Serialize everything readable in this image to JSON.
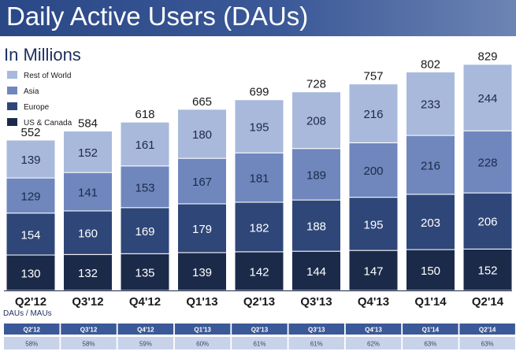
{
  "title": "Daily Active Users (DAUs)",
  "subtitle": "In Millions",
  "chart_data": {
    "type": "bar",
    "stacked": true,
    "title": "Daily Active Users (DAUs)",
    "subtitle": "In Millions",
    "categories": [
      "Q2'12",
      "Q3'12",
      "Q4'12",
      "Q1'13",
      "Q2'13",
      "Q3'13",
      "Q4'13",
      "Q1'14",
      "Q2'14"
    ],
    "series": [
      {
        "name": "US & Canada",
        "color": "#1c2a4a",
        "label_color": "#ffffff",
        "values": [
          130,
          132,
          135,
          139,
          142,
          144,
          147,
          150,
          152
        ]
      },
      {
        "name": "Europe",
        "color": "#2f4678",
        "label_color": "#ffffff",
        "values": [
          154,
          160,
          169,
          179,
          182,
          188,
          195,
          203,
          206
        ]
      },
      {
        "name": "Asia",
        "color": "#6f87bd",
        "label_color": "#1c2a4a",
        "values": [
          129,
          141,
          153,
          167,
          181,
          189,
          200,
          216,
          228
        ]
      },
      {
        "name": "Rest of World",
        "color": "#a8b9dc",
        "label_color": "#1c2a4a",
        "values": [
          139,
          152,
          161,
          180,
          195,
          208,
          216,
          233,
          244
        ]
      }
    ],
    "totals": [
      552,
      584,
      618,
      665,
      699,
      728,
      757,
      802,
      829
    ],
    "legend_order": [
      "Rest of World",
      "Asia",
      "Europe",
      "US & Canada"
    ],
    "legend_position": "top-left",
    "ylim": [
      0,
      900
    ],
    "grid": false
  },
  "dau_mau": {
    "label": "DAUs / MAUs",
    "quarters": [
      "Q2'12",
      "Q3'12",
      "Q4'12",
      "Q1'13",
      "Q2'13",
      "Q3'13",
      "Q4'13",
      "Q1'14",
      "Q2'14"
    ],
    "values": [
      "58%",
      "58%",
      "59%",
      "60%",
      "61%",
      "61%",
      "62%",
      "63%",
      "63%"
    ],
    "header_color": "#3b5998",
    "value_bg_color": "#c8d2e8"
  }
}
